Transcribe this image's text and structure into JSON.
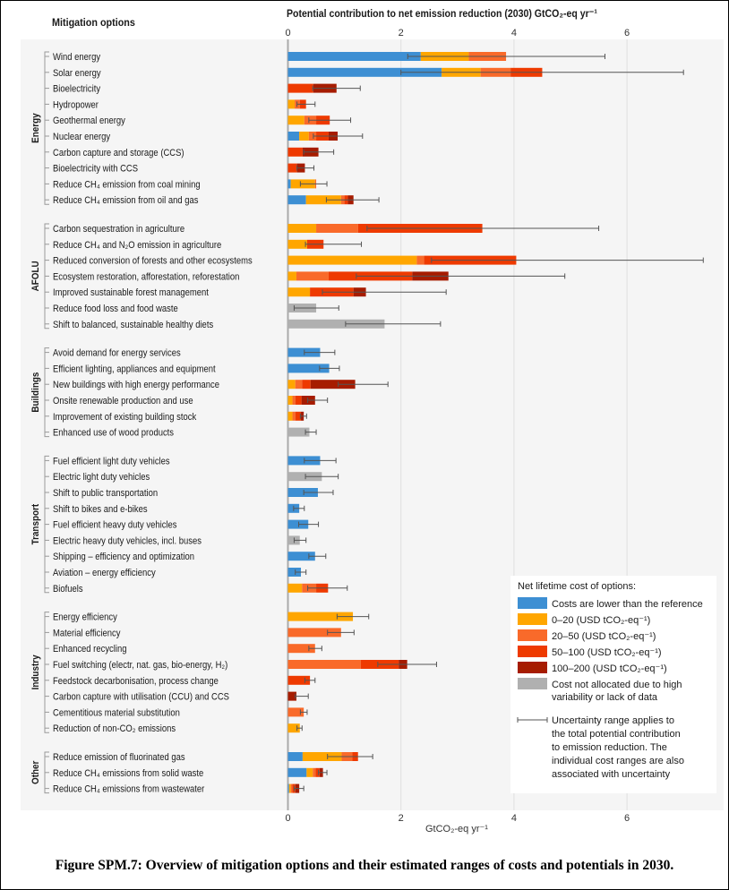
{
  "header": {
    "options_title": "Mitigation options",
    "axis_title": "Potential contribution to net emission reduction (2030) GtCO₂-eq yr⁻¹"
  },
  "caption": "Figure SPM.7: Overview of mitigation options and their estimated ranges of costs and potentials in 2030.",
  "chart_data": {
    "type": "bar",
    "orientation": "horizontal-stacked",
    "title": "Potential contribution to net emission reduction (2030) GtCO₂-eq yr⁻¹",
    "xlabel": "GtCO₂-eq yr⁻¹",
    "xlim": [
      0,
      7.5
    ],
    "xticks": [
      "0",
      "2",
      "4",
      "6"
    ],
    "xtick_values": [
      0,
      2,
      4,
      6
    ],
    "grid": true,
    "legend_placement": "bottom-right",
    "legend": {
      "title": "Net lifetime cost of options:",
      "items": [
        {
          "key": "L",
          "label": "Costs are lower than the reference",
          "color": "#3d8fd3"
        },
        {
          "key": "A",
          "label": "0–20 (USD tCO₂-eq⁻¹)",
          "color": "#ffa600"
        },
        {
          "key": "B",
          "label": "20–50 (USD tCO₂-eq⁻¹)",
          "color": "#f96a2a"
        },
        {
          "key": "C",
          "label": "50–100 (USD tCO₂-eq⁻¹)",
          "color": "#ee3a00"
        },
        {
          "key": "D",
          "label": "100–200 (USD tCO₂-eq⁻¹)",
          "color": "#a61c00"
        },
        {
          "key": "N",
          "label": "Cost not allocated due to high variability or lack of data",
          "label_lines": [
            "Cost not allocated due to high",
            "variability or lack of data"
          ],
          "color": "#b0b0b0"
        }
      ],
      "uncertainty_lines": [
        "Uncertainty range applies to",
        "the total potential contribution",
        "to emission reduction. The",
        "individual cost ranges are also",
        "associated with uncertainty"
      ]
    },
    "groups": [
      {
        "name": "Energy",
        "rows": [
          {
            "label": "Wind energy",
            "segments": [
              [
                "L",
                2.35
              ],
              [
                "A",
                0.85
              ],
              [
                "B",
                0.66
              ]
            ],
            "range": [
              2.12,
              5.61
            ]
          },
          {
            "label": "Solar energy",
            "segments": [
              [
                "L",
                2.72
              ],
              [
                "A",
                0.69
              ],
              [
                "B",
                0.53
              ],
              [
                "C",
                0.56
              ]
            ],
            "range": [
              2.0,
              7.0
            ]
          },
          {
            "label": "Bioelectricity",
            "segments": [
              [
                "C",
                0.45
              ],
              [
                "D",
                0.41
              ]
            ],
            "range": [
              0.44,
              1.28
            ]
          },
          {
            "label": "Hydropower",
            "segments": [
              [
                "A",
                0.12
              ],
              [
                "B",
                0.09
              ],
              [
                "C",
                0.11
              ]
            ],
            "range": [
              0.16,
              0.48
            ]
          },
          {
            "label": "Geothermal energy",
            "segments": [
              [
                "A",
                0.29
              ],
              [
                "B",
                0.21
              ],
              [
                "C",
                0.24
              ]
            ],
            "range": [
              0.37,
              1.11
            ]
          },
          {
            "label": "Nuclear energy",
            "segments": [
              [
                "L",
                0.2
              ],
              [
                "A",
                0.17
              ],
              [
                "B",
                0.13
              ],
              [
                "C",
                0.22
              ],
              [
                "D",
                0.16
              ]
            ],
            "range": [
              0.45,
              1.32
            ]
          },
          {
            "label": "Carbon capture and storage (CCS)",
            "segments": [
              [
                "C",
                0.26
              ],
              [
                "D",
                0.28
              ]
            ],
            "range": [
              0.28,
              0.81
            ]
          },
          {
            "label": "Bioelectricity with CCS",
            "segments": [
              [
                "C",
                0.16
              ],
              [
                "D",
                0.14
              ]
            ],
            "range": [
              0.16,
              0.46
            ]
          },
          {
            "label": "Reduce CH₄ emission from coal mining",
            "segments": [
              [
                "L",
                0.05
              ],
              [
                "A",
                0.43
              ],
              [
                "B",
                0.02
              ]
            ],
            "range": [
              0.22,
              0.69
            ]
          },
          {
            "label": "Reduce CH₄ emission from oil and gas",
            "segments": [
              [
                "L",
                0.32
              ],
              [
                "A",
                0.62
              ],
              [
                "B",
                0.06
              ],
              [
                "C",
                0.06
              ],
              [
                "D",
                0.1
              ]
            ],
            "range": [
              0.68,
              1.61
            ]
          }
        ]
      },
      {
        "name": "AFOLU",
        "rows": [
          {
            "label": "Carbon sequestration in agriculture",
            "segments": [
              [
                "A",
                0.5
              ],
              [
                "B",
                0.74
              ],
              [
                "C",
                2.2
              ]
            ],
            "range": [
              1.4,
              5.5
            ]
          },
          {
            "label": "Reduce CH₄ and N₂O emission in agriculture",
            "segments": [
              [
                "A",
                0.34
              ],
              [
                "C",
                0.29
              ]
            ],
            "range": [
              0.31,
              1.3
            ]
          },
          {
            "label": "Reduced conversion of forests and other ecosystems",
            "segments": [
              [
                "A",
                2.28
              ],
              [
                "B",
                0.13
              ],
              [
                "C",
                1.63
              ]
            ],
            "range": [
              2.54,
              7.35
            ]
          },
          {
            "label": "Ecosystem restoration, afforestation, reforestation",
            "segments": [
              [
                "A",
                0.15
              ],
              [
                "B",
                0.57
              ],
              [
                "C",
                1.48
              ],
              [
                "D",
                0.64
              ]
            ],
            "range": [
              1.21,
              4.9
            ]
          },
          {
            "label": "Improved sustainable forest management",
            "segments": [
              [
                "A",
                0.39
              ],
              [
                "C",
                0.77
              ],
              [
                "D",
                0.22
              ]
            ],
            "range": [
              0.61,
              2.8
            ]
          },
          {
            "label": "Reduce food loss and food waste",
            "segments": [
              [
                "N",
                0.5
              ]
            ],
            "range": [
              0.11,
              0.9
            ]
          },
          {
            "label": "Shift to balanced, sustainable healthy diets",
            "segments": [
              [
                "N",
                1.71
              ]
            ],
            "range": [
              1.02,
              2.7
            ]
          }
        ]
      },
      {
        "name": "Buildings",
        "rows": [
          {
            "label": "Avoid demand for energy services",
            "segments": [
              [
                "L",
                0.57
              ]
            ],
            "range": [
              0.29,
              0.83
            ]
          },
          {
            "label": "Efficient lighting, appliances and equipment",
            "segments": [
              [
                "L",
                0.73
              ]
            ],
            "range": [
              0.56,
              0.91
            ]
          },
          {
            "label": "New buildings with high energy performance",
            "segments": [
              [
                "A",
                0.13
              ],
              [
                "B",
                0.12
              ],
              [
                "C",
                0.15
              ],
              [
                "D",
                0.79
              ]
            ],
            "range": [
              0.89,
              1.77
            ]
          },
          {
            "label": "Onsite renewable production and use",
            "segments": [
              [
                "A",
                0.08
              ],
              [
                "B",
                0.05
              ],
              [
                "C",
                0.11
              ],
              [
                "D",
                0.24
              ]
            ],
            "range": [
              0.35,
              0.7
            ]
          },
          {
            "label": "Improvement of existing building stock",
            "segments": [
              [
                "A",
                0.08
              ],
              [
                "B",
                0.05
              ],
              [
                "C",
                0.1
              ],
              [
                "D",
                0.05
              ]
            ],
            "range": [
              0.22,
              0.33
            ]
          },
          {
            "label": "Enhanced use of wood products",
            "segments": [
              [
                "N",
                0.38
              ]
            ],
            "range": [
              0.31,
              0.5
            ]
          }
        ]
      },
      {
        "name": "Transport",
        "rows": [
          {
            "label": "Fuel efficient light duty vehicles",
            "segments": [
              [
                "L",
                0.57
              ]
            ],
            "range": [
              0.29,
              0.85
            ]
          },
          {
            "label": "Electric light duty vehicles",
            "segments": [
              [
                "N",
                0.6
              ]
            ],
            "range": [
              0.31,
              0.89
            ]
          },
          {
            "label": "Shift to public transportation",
            "segments": [
              [
                "L",
                0.53
              ]
            ],
            "range": [
              0.28,
              0.8
            ]
          },
          {
            "label": "Shift to bikes and e-bikes",
            "segments": [
              [
                "L",
                0.2
              ]
            ],
            "range": [
              0.1,
              0.29
            ]
          },
          {
            "label": "Fuel efficient heavy duty vehicles",
            "segments": [
              [
                "L",
                0.36
              ]
            ],
            "range": [
              0.19,
              0.54
            ]
          },
          {
            "label": "Electric heavy duty vehicles, incl. buses",
            "segments": [
              [
                "N",
                0.21
              ]
            ],
            "range": [
              0.11,
              0.32
            ]
          },
          {
            "label": "Shipping – efficiency and optimization",
            "segments": [
              [
                "L",
                0.48
              ]
            ],
            "range": [
              0.37,
              0.67
            ]
          },
          {
            "label": "Aviation – energy efficiency",
            "segments": [
              [
                "L",
                0.23
              ]
            ],
            "range": [
              0.13,
              0.32
            ]
          },
          {
            "label": "Biofuels",
            "segments": [
              [
                "A",
                0.25
              ],
              [
                "B",
                0.25
              ],
              [
                "C",
                0.21
              ]
            ],
            "range": [
              0.35,
              1.05
            ]
          }
        ]
      },
      {
        "name": "Industry",
        "rows": [
          {
            "label": "Energy efficiency",
            "segments": [
              [
                "A",
                1.15
              ]
            ],
            "range": [
              0.87,
              1.43
            ]
          },
          {
            "label": "Material efficiency",
            "segments": [
              [
                "B",
                0.94
              ]
            ],
            "range": [
              0.7,
              1.17
            ]
          },
          {
            "label": "Enhanced recycling",
            "segments": [
              [
                "B",
                0.48
              ]
            ],
            "range": [
              0.37,
              0.6
            ]
          },
          {
            "label": "Fuel switching (electr, nat. gas, bio-energy, H₂)",
            "segments": [
              [
                "B",
                1.29
              ],
              [
                "C",
                0.67
              ],
              [
                "D",
                0.15
              ]
            ],
            "range": [
              1.59,
              2.63
            ]
          },
          {
            "label": "Feedstock decarbonisation, process change",
            "segments": [
              [
                "C",
                0.39
              ]
            ],
            "range": [
              0.3,
              0.48
            ]
          },
          {
            "label": "Carbon capture with utilisation (CCU) and CCS",
            "segments": [
              [
                "D",
                0.15
              ]
            ],
            "range": [
              0.13,
              0.36
            ]
          },
          {
            "label": "Cementitious material substitution",
            "segments": [
              [
                "B",
                0.28
              ]
            ],
            "range": [
              0.22,
              0.34
            ]
          },
          {
            "label": "Reduction of non-CO₂ emissions",
            "segments": [
              [
                "A",
                0.21
              ]
            ],
            "range": [
              0.16,
              0.25
            ]
          }
        ]
      },
      {
        "name": "Other",
        "rows": [
          {
            "label": "Reduce emission of fluorinated gas",
            "segments": [
              [
                "L",
                0.26
              ],
              [
                "A",
                0.69
              ],
              [
                "B",
                0.19
              ],
              [
                "C",
                0.1
              ]
            ],
            "range": [
              0.7,
              1.5
            ]
          },
          {
            "label": "Reduce CH₄ emissions from solid waste",
            "segments": [
              [
                "L",
                0.33
              ],
              [
                "A",
                0.11
              ],
              [
                "B",
                0.05
              ],
              [
                "C",
                0.07
              ],
              [
                "D",
                0.06
              ]
            ],
            "range": [
              0.54,
              0.69
            ]
          },
          {
            "label": "Reduce CH₄ emissions from wastewater",
            "segments": [
              [
                "L",
                0.02
              ],
              [
                "A",
                0.03
              ],
              [
                "B",
                0.03
              ],
              [
                "C",
                0.05
              ],
              [
                "D",
                0.07
              ]
            ],
            "range": [
              0.11,
              0.28
            ]
          }
        ]
      }
    ]
  }
}
